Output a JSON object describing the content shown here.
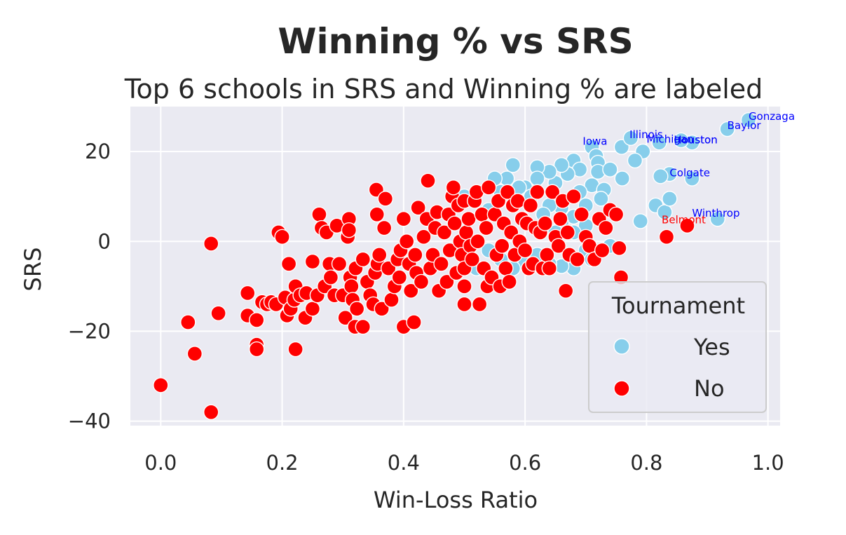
{
  "chart_data": {
    "type": "scatter",
    "title": "Winning % vs SRS",
    "subtitle": "Top 6 schools in SRS and Winning % are labeled",
    "xlabel": "Win-Loss Ratio",
    "ylabel": "SRS",
    "xlim": [
      -0.05,
      1.02
    ],
    "ylim": [
      -41,
      30
    ],
    "xticks": [
      "0.0",
      "0.2",
      "0.4",
      "0.6",
      "0.8",
      "1.0"
    ],
    "yticks": [
      "20",
      "0",
      "−20",
      "−40"
    ],
    "grid": true,
    "legend": {
      "title": "Tournament",
      "position": "lower-right",
      "entries": [
        "Yes",
        "No"
      ]
    },
    "series": [
      {
        "name": "Yes",
        "color": "#87CEEB",
        "points": [
          [
            0.968,
            27
          ],
          [
            0.933,
            25
          ],
          [
            0.875,
            22
          ],
          [
            0.857,
            22.5
          ],
          [
            0.821,
            22
          ],
          [
            0.794,
            20
          ],
          [
            0.781,
            18
          ],
          [
            0.759,
            21
          ],
          [
            0.774,
            23
          ],
          [
            0.71,
            21
          ],
          [
            0.717,
            19
          ],
          [
            0.72,
            17.5
          ],
          [
            0.72,
            15.5
          ],
          [
            0.71,
            12.5
          ],
          [
            0.74,
            16
          ],
          [
            0.76,
            14
          ],
          [
            0.73,
            11.5
          ],
          [
            0.725,
            9.5
          ],
          [
            0.68,
            18
          ],
          [
            0.69,
            16
          ],
          [
            0.67,
            15
          ],
          [
            0.66,
            17
          ],
          [
            0.65,
            13
          ],
          [
            0.64,
            15.5
          ],
          [
            0.62,
            16.5
          ],
          [
            0.62,
            14
          ],
          [
            0.6,
            12
          ],
          [
            0.58,
            17
          ],
          [
            0.57,
            14
          ],
          [
            0.55,
            14
          ],
          [
            0.56,
            11
          ],
          [
            0.59,
            12
          ],
          [
            0.61,
            10
          ],
          [
            0.69,
            11
          ],
          [
            0.7,
            8
          ],
          [
            0.68,
            5.5
          ],
          [
            0.7,
            3.5
          ],
          [
            0.68,
            2
          ],
          [
            0.66,
            7.5
          ],
          [
            0.64,
            8
          ],
          [
            0.63,
            6
          ],
          [
            0.66,
            4
          ],
          [
            0.7,
            -2
          ],
          [
            0.74,
            -1
          ],
          [
            0.68,
            -6
          ],
          [
            0.66,
            -5.5
          ],
          [
            0.64,
            -5
          ],
          [
            0.62,
            -3
          ],
          [
            0.6,
            -5
          ],
          [
            0.58,
            -6
          ],
          [
            0.56,
            -4
          ],
          [
            0.54,
            -2
          ],
          [
            0.52,
            -6
          ],
          [
            0.5,
            10
          ],
          [
            0.54,
            7
          ],
          [
            0.79,
            4.5
          ],
          [
            0.815,
            8
          ],
          [
            0.83,
            6.5
          ],
          [
            0.838,
            9.5
          ],
          [
            0.838,
            15
          ],
          [
            0.823,
            14.5
          ],
          [
            0.875,
            14
          ],
          [
            0.917,
            5
          ],
          [
            0.71,
            -4
          ],
          [
            0.65,
            2
          ]
        ]
      },
      {
        "name": "No",
        "color": "#FF0000",
        "points": [
          [
            0.0,
            -32
          ],
          [
            0.045,
            -18
          ],
          [
            0.056,
            -25
          ],
          [
            0.083,
            -38
          ],
          [
            0.083,
            -0.5
          ],
          [
            0.095,
            -16
          ],
          [
            0.143,
            -11.5
          ],
          [
            0.143,
            -16.5
          ],
          [
            0.158,
            -17.5
          ],
          [
            0.158,
            -23
          ],
          [
            0.158,
            -24
          ],
          [
            0.167,
            -13.5
          ],
          [
            0.175,
            -14
          ],
          [
            0.182,
            -13.5
          ],
          [
            0.19,
            -14
          ],
          [
            0.194,
            2
          ],
          [
            0.2,
            1
          ],
          [
            0.205,
            -12.5
          ],
          [
            0.208,
            -16.5
          ],
          [
            0.211,
            -5
          ],
          [
            0.214,
            -15
          ],
          [
            0.22,
            -13
          ],
          [
            0.222,
            -24
          ],
          [
            0.222,
            -10
          ],
          [
            0.23,
            -12
          ],
          [
            0.238,
            -17
          ],
          [
            0.24,
            -11.5
          ],
          [
            0.25,
            -4.5
          ],
          [
            0.25,
            -15
          ],
          [
            0.258,
            -12
          ],
          [
            0.261,
            6
          ],
          [
            0.265,
            3
          ],
          [
            0.27,
            -10
          ],
          [
            0.273,
            2
          ],
          [
            0.278,
            -5
          ],
          [
            0.28,
            -8
          ],
          [
            0.286,
            -12
          ],
          [
            0.29,
            3.5
          ],
          [
            0.294,
            -5
          ],
          [
            0.3,
            -12
          ],
          [
            0.304,
            -17
          ],
          [
            0.308,
            1
          ],
          [
            0.31,
            5
          ],
          [
            0.31,
            2.5
          ],
          [
            0.312,
            -8
          ],
          [
            0.314,
            -10
          ],
          [
            0.316,
            -13
          ],
          [
            0.32,
            -19
          ],
          [
            0.321,
            -6
          ],
          [
            0.323,
            -15
          ],
          [
            0.333,
            -19
          ],
          [
            0.333,
            -4
          ],
          [
            0.34,
            -9
          ],
          [
            0.345,
            -12
          ],
          [
            0.35,
            -14
          ],
          [
            0.353,
            -7
          ],
          [
            0.355,
            11.5
          ],
          [
            0.356,
            6
          ],
          [
            0.357,
            -5
          ],
          [
            0.36,
            -3
          ],
          [
            0.364,
            -15
          ],
          [
            0.368,
            3
          ],
          [
            0.37,
            9.5
          ],
          [
            0.375,
            -6
          ],
          [
            0.38,
            -13
          ],
          [
            0.385,
            -10
          ],
          [
            0.39,
            -4
          ],
          [
            0.393,
            -8
          ],
          [
            0.395,
            -2
          ],
          [
            0.4,
            5
          ],
          [
            0.4,
            -19
          ],
          [
            0.405,
            0
          ],
          [
            0.409,
            -5
          ],
          [
            0.412,
            -11
          ],
          [
            0.417,
            -18
          ],
          [
            0.419,
            -3
          ],
          [
            0.421,
            -7
          ],
          [
            0.424,
            7.5
          ],
          [
            0.429,
            -9
          ],
          [
            0.433,
            1
          ],
          [
            0.438,
            5
          ],
          [
            0.44,
            13.5
          ],
          [
            0.444,
            -6
          ],
          [
            0.448,
            -3
          ],
          [
            0.452,
            3
          ],
          [
            0.455,
            6.5
          ],
          [
            0.458,
            -11
          ],
          [
            0.462,
            -5
          ],
          [
            0.467,
            2
          ],
          [
            0.471,
            -9
          ],
          [
            0.474,
            6
          ],
          [
            0.476,
            -2
          ],
          [
            0.48,
            10
          ],
          [
            0.482,
            12
          ],
          [
            0.484,
            4
          ],
          [
            0.487,
            -7
          ],
          [
            0.49,
            8
          ],
          [
            0.493,
            0
          ],
          [
            0.496,
            -3
          ],
          [
            0.5,
            9
          ],
          [
            0.5,
            -14
          ],
          [
            0.5,
            -10
          ],
          [
            0.5,
            -6
          ],
          [
            0.503,
            2
          ],
          [
            0.507,
            5
          ],
          [
            0.51,
            -1
          ],
          [
            0.513,
            -4
          ],
          [
            0.517,
            9
          ],
          [
            0.52,
            11
          ],
          [
            0.522,
            0
          ],
          [
            0.525,
            -14
          ],
          [
            0.529,
            6
          ],
          [
            0.532,
            -6
          ],
          [
            0.536,
            3
          ],
          [
            0.538,
            -10
          ],
          [
            0.54,
            12
          ],
          [
            0.545,
            -8
          ],
          [
            0.55,
            6
          ],
          [
            0.553,
            -3
          ],
          [
            0.556,
            9
          ],
          [
            0.559,
            -10
          ],
          [
            0.562,
            -1
          ],
          [
            0.565,
            4
          ],
          [
            0.568,
            -6
          ],
          [
            0.571,
            11
          ],
          [
            0.574,
            -9
          ],
          [
            0.577,
            2
          ],
          [
            0.58,
            8
          ],
          [
            0.583,
            -3
          ],
          [
            0.588,
            9
          ],
          [
            0.591,
            0
          ],
          [
            0.595,
            5
          ],
          [
            0.6,
            -2
          ],
          [
            0.603,
            4
          ],
          [
            0.606,
            -6
          ],
          [
            0.609,
            8
          ],
          [
            0.613,
            -5
          ],
          [
            0.617,
            3
          ],
          [
            0.62,
            11
          ],
          [
            0.625,
            2
          ],
          [
            0.629,
            -6
          ],
          [
            0.633,
            4
          ],
          [
            0.636,
            -3
          ],
          [
            0.64,
            -6
          ],
          [
            0.645,
            11
          ],
          [
            0.65,
            1
          ],
          [
            0.655,
            -1
          ],
          [
            0.658,
            5
          ],
          [
            0.662,
            9
          ],
          [
            0.667,
            -11
          ],
          [
            0.67,
            2
          ],
          [
            0.673,
            -3
          ],
          [
            0.68,
            10
          ],
          [
            0.686,
            -4
          ],
          [
            0.693,
            6
          ],
          [
            0.7,
            1
          ],
          [
            0.706,
            -1
          ],
          [
            0.714,
            -4
          ],
          [
            0.722,
            5
          ],
          [
            0.727,
            -2
          ],
          [
            0.733,
            3
          ],
          [
            0.74,
            7
          ],
          [
            0.75,
            6
          ],
          [
            0.755,
            -1.5
          ],
          [
            0.758,
            -8
          ],
          [
            0.833,
            1
          ],
          [
            0.867,
            3.5
          ]
        ]
      }
    ],
    "labels": [
      {
        "text": "Gonzaga",
        "x": 0.968,
        "y": 27,
        "color": "#0000FF"
      },
      {
        "text": "Baylor",
        "x": 0.933,
        "y": 25,
        "color": "#0000FF"
      },
      {
        "text": "Iowa",
        "x": 0.695,
        "y": 21.5,
        "color": "#0000FF"
      },
      {
        "text": "Illinois",
        "x": 0.772,
        "y": 23,
        "color": "#0000FF"
      },
      {
        "text": "Michigan",
        "x": 0.8,
        "y": 22,
        "color": "#0000FF"
      },
      {
        "text": "Houston",
        "x": 0.845,
        "y": 21.8,
        "color": "#0000FF"
      },
      {
        "text": "Houston",
        "x": 0.845,
        "y": 21.8,
        "color": "#0000FF"
      },
      {
        "text": "Colgate",
        "x": 0.838,
        "y": 14.5,
        "color": "#0000FF"
      },
      {
        "text": "Winthrop",
        "x": 0.875,
        "y": 5.5,
        "color": "#0000FF"
      },
      {
        "text": "Belmont",
        "x": 0.825,
        "y": 4,
        "color": "#FF0000"
      }
    ]
  }
}
